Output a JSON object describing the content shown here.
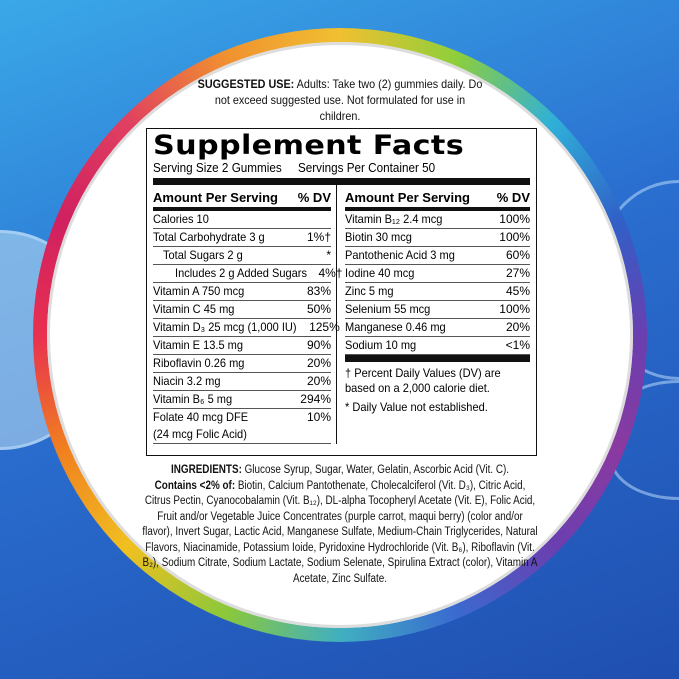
{
  "suggested_use": {
    "label": "SUGGESTED USE:",
    "text": " Adults: Take two (2) gummies daily. Do not exceed suggested use. Not formulated for use in children."
  },
  "facts": {
    "title": "Supplement Facts",
    "serving_size": "Serving Size 2 Gummies",
    "servings_per_container": "Servings Per Container 50",
    "header_amount": "Amount Per Serving",
    "header_dv": "% DV",
    "left_rows": [
      {
        "name": "Calories 10",
        "dv": "",
        "indent": 0
      },
      {
        "name": "Total Carbohydrate 3 g",
        "dv": "1%†",
        "indent": 0
      },
      {
        "name": "Total Sugars 2 g",
        "dv": "*",
        "indent": 1
      },
      {
        "name": "Includes 2 g Added Sugars",
        "dv": "4%†",
        "indent": 2
      },
      {
        "name": "Vitamin A 750 mcg",
        "dv": "83%",
        "indent": 0
      },
      {
        "name": "Vitamin C 45 mg",
        "dv": "50%",
        "indent": 0
      },
      {
        "name": "Vitamin D₃ 25 mcg (1,000 IU)",
        "dv": "125%",
        "indent": 0
      },
      {
        "name": "Vitamin E 13.5 mg",
        "dv": "90%",
        "indent": 0
      },
      {
        "name": "Riboflavin 0.26 mg",
        "dv": "20%",
        "indent": 0
      },
      {
        "name": "Niacin 3.2 mg",
        "dv": "20%",
        "indent": 0
      },
      {
        "name": "Vitamin B₆ 5 mg",
        "dv": "294%",
        "indent": 0
      },
      {
        "name": "Folate 40 mcg DFE",
        "dv": "10%",
        "indent": 0
      },
      {
        "name": " (24 mcg Folic Acid)",
        "dv": "",
        "indent": 0
      }
    ],
    "right_rows": [
      {
        "name": "Vitamin B₁₂ 2.4 mcg",
        "dv": "100%"
      },
      {
        "name": "Biotin 30 mcg",
        "dv": "100%"
      },
      {
        "name": "Pantothenic Acid 3 mg",
        "dv": "60%"
      },
      {
        "name": "Iodine 40 mcg",
        "dv": "27%"
      },
      {
        "name": "Zinc 5 mg",
        "dv": "45%"
      },
      {
        "name": "Selenium 55 mcg",
        "dv": "100%"
      },
      {
        "name": "Manganese 0.46 mg",
        "dv": "20%"
      },
      {
        "name": "Sodium 10 mg",
        "dv": "<1%"
      }
    ],
    "note_dv": "† Percent Daily Values (DV) are based on a 2,000 calorie diet.",
    "note_star": "* Daily Value not established."
  },
  "ingredients": {
    "label": "INGREDIENTS:",
    "main": " Glucose Syrup, Sugar, Water, Gelatin, Ascorbic Acid (Vit. C).",
    "contains_label": "Contains <2% of:",
    "contains": " Biotin, Calcium Pantothenate, Cholecalciferol (Vit. D₃), Citric Acid, Citrus Pectin, Cyanocobalamin (Vit. B₁₂), DL-alpha Tocopheryl Acetate (Vit. E), Folic Acid, Fruit and/or Vegetable Juice Concentrates (purple carrot, maqui berry) (color and/or flavor), Invert Sugar, Lactic Acid, Manganese Sulfate, Medium-Chain Triglycerides, Natural Flavors, Niacinamide, Potassium Ioide, Pyridoxine Hydrochloride (Vit. B₆), Riboflavin (Vit. B₂), Sodium Citrate, Sodium Lactate, Sodium Selenate, Spirulina Extract (color), Vitamin A Acetate, Zinc Sulfate."
  }
}
